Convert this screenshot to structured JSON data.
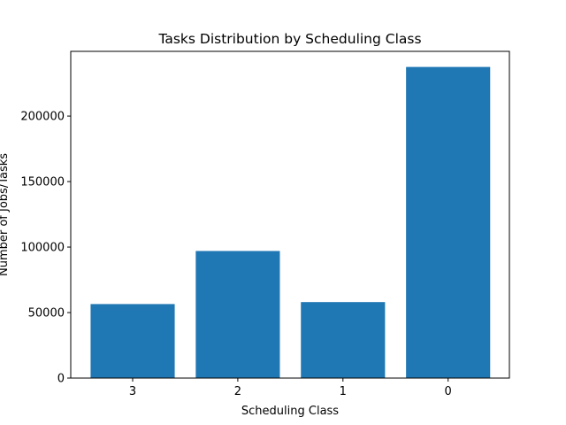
{
  "chart_data": {
    "type": "bar",
    "title": "Tasks Distribution by Scheduling Class",
    "xlabel": "Scheduling Class",
    "ylabel": "Number of Jobs/Tasks",
    "categories": [
      "3",
      "2",
      "1",
      "0"
    ],
    "values": [
      56500,
      97000,
      58000,
      237500
    ],
    "ylim": [
      0,
      249400
    ],
    "yticks": [
      0,
      50000,
      100000,
      150000,
      200000
    ],
    "ytick_labels": [
      "0",
      "50000",
      "100000",
      "150000",
      "200000"
    ],
    "grid": false,
    "legend": "none",
    "bar_color": "#1f77b4"
  }
}
